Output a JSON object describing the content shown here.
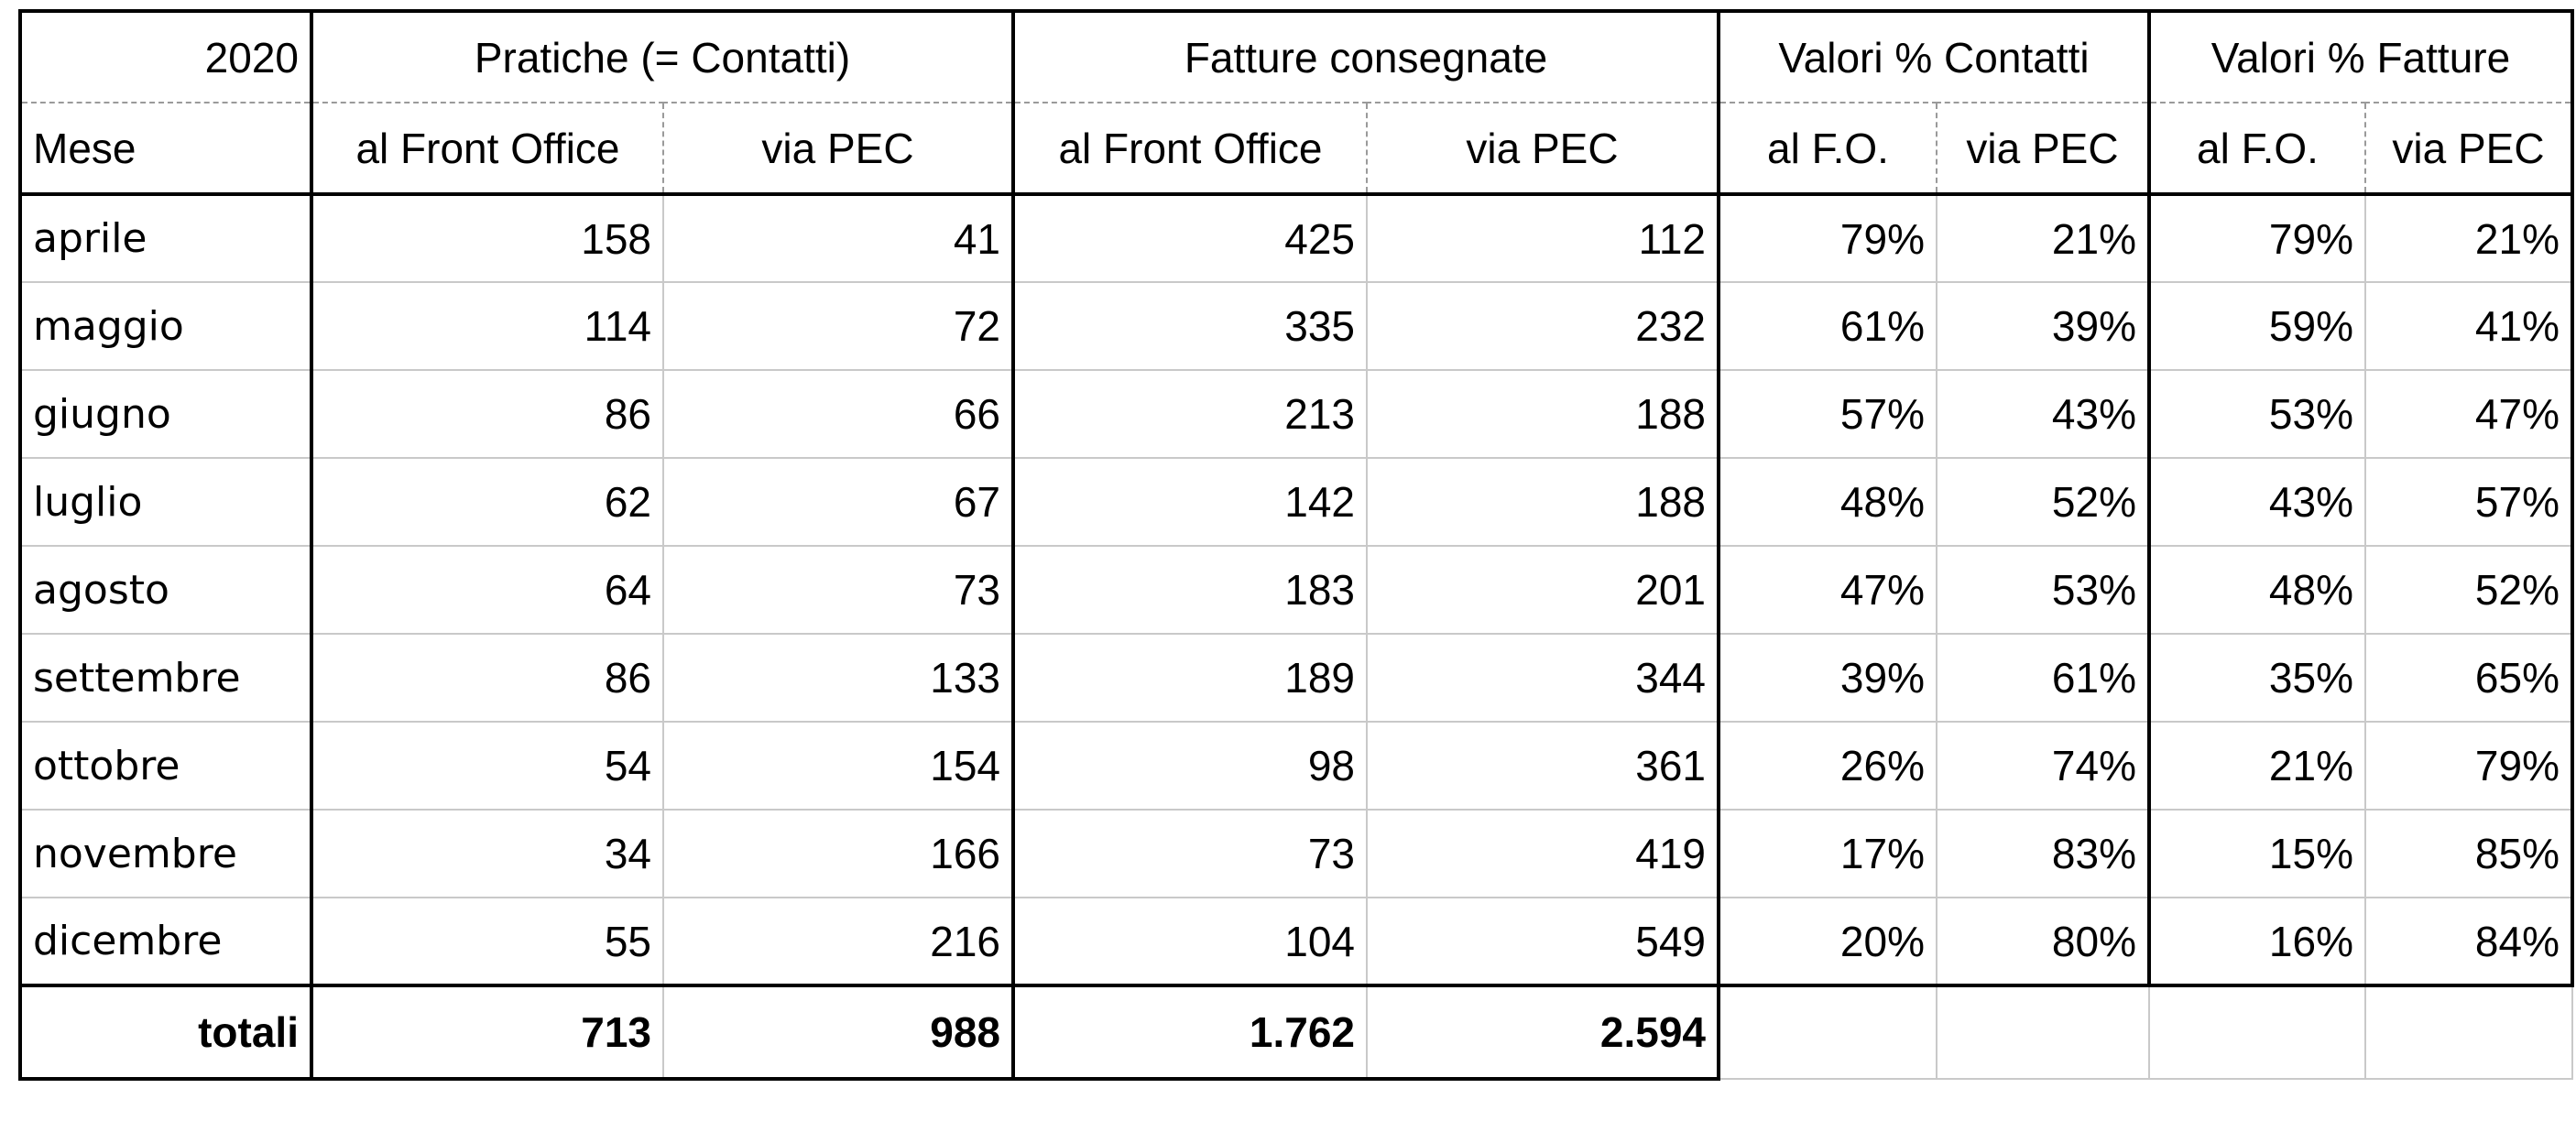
{
  "header": {
    "year": "2020",
    "group_pratiche": "Pratiche (= Contatti)",
    "group_fatture": "Fatture consegnate",
    "group_pct_contatti": "Valori % Contatti",
    "group_pct_fatture": "Valori % Fatture",
    "col_mese": "Mese",
    "col_fo": "al Front Office",
    "col_pec": "via PEC",
    "col_fo_short": "al F.O.",
    "col_pec_short": "via PEC"
  },
  "rows": [
    {
      "mese": "aprile",
      "prat_fo": "158",
      "prat_pec": "41",
      "fatt_fo": "425",
      "fatt_pec": "112",
      "pc_fo": "79%",
      "pc_pec": "21%",
      "pf_fo": "79%",
      "pf_pec": "21%"
    },
    {
      "mese": "maggio",
      "prat_fo": "114",
      "prat_pec": "72",
      "fatt_fo": "335",
      "fatt_pec": "232",
      "pc_fo": "61%",
      "pc_pec": "39%",
      "pf_fo": "59%",
      "pf_pec": "41%"
    },
    {
      "mese": "giugno",
      "prat_fo": "86",
      "prat_pec": "66",
      "fatt_fo": "213",
      "fatt_pec": "188",
      "pc_fo": "57%",
      "pc_pec": "43%",
      "pf_fo": "53%",
      "pf_pec": "47%"
    },
    {
      "mese": "luglio",
      "prat_fo": "62",
      "prat_pec": "67",
      "fatt_fo": "142",
      "fatt_pec": "188",
      "pc_fo": "48%",
      "pc_pec": "52%",
      "pf_fo": "43%",
      "pf_pec": "57%"
    },
    {
      "mese": "agosto",
      "prat_fo": "64",
      "prat_pec": "73",
      "fatt_fo": "183",
      "fatt_pec": "201",
      "pc_fo": "47%",
      "pc_pec": "53%",
      "pf_fo": "48%",
      "pf_pec": "52%"
    },
    {
      "mese": "settembre",
      "prat_fo": "86",
      "prat_pec": "133",
      "fatt_fo": "189",
      "fatt_pec": "344",
      "pc_fo": "39%",
      "pc_pec": "61%",
      "pf_fo": "35%",
      "pf_pec": "65%"
    },
    {
      "mese": "ottobre",
      "prat_fo": "54",
      "prat_pec": "154",
      "fatt_fo": "98",
      "fatt_pec": "361",
      "pc_fo": "26%",
      "pc_pec": "74%",
      "pf_fo": "21%",
      "pf_pec": "79%"
    },
    {
      "mese": "novembre",
      "prat_fo": "34",
      "prat_pec": "166",
      "fatt_fo": "73",
      "fatt_pec": "419",
      "pc_fo": "17%",
      "pc_pec": "83%",
      "pf_fo": "15%",
      "pf_pec": "85%"
    },
    {
      "mese": "dicembre",
      "prat_fo": "55",
      "prat_pec": "216",
      "fatt_fo": "104",
      "fatt_pec": "549",
      "pc_fo": "20%",
      "pc_pec": "80%",
      "pf_fo": "16%",
      "pf_pec": "84%"
    }
  ],
  "totals": {
    "label": "totali",
    "prat_fo": "713",
    "prat_pec": "988",
    "fatt_fo": "1.762",
    "fatt_pec": "2.594"
  }
}
